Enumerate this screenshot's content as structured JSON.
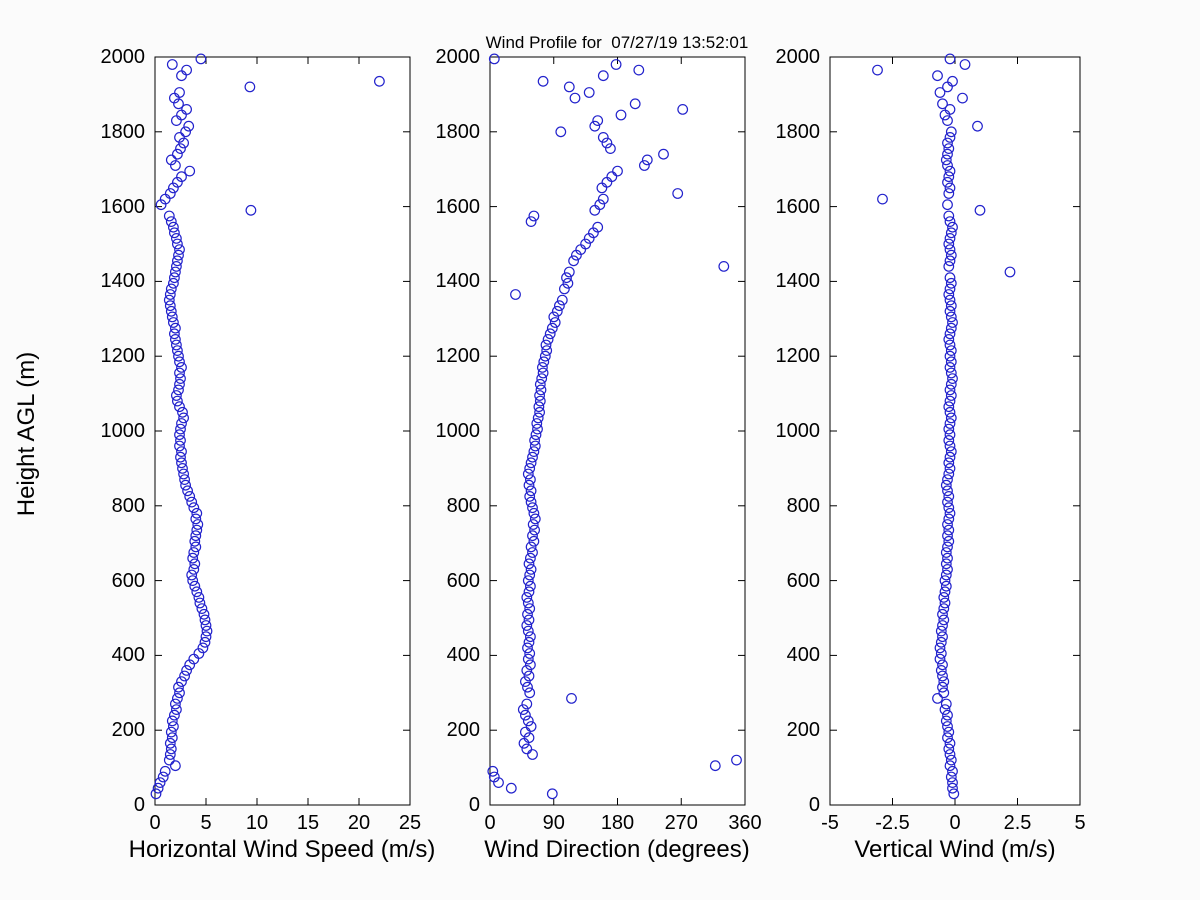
{
  "title": "Wind Profile for  07/27/19 13:52:01",
  "chart_data": {
    "type": "scatter",
    "title": "Wind Profile for  07/27/19 13:52:01",
    "marker": "open-circle",
    "marker_color": "#2222cc",
    "axis_color": "#000000",
    "background_color": "#ffffff",
    "legend": "none",
    "grid": false,
    "shared_y": {
      "label": "Height AGL (m)",
      "lim": [
        0,
        2000
      ],
      "ticks": [
        0,
        200,
        400,
        600,
        800,
        1000,
        1200,
        1400,
        1600,
        1800,
        2000
      ],
      "heights": [
        30,
        45,
        60,
        75,
        90,
        105,
        120,
        135,
        150,
        165,
        180,
        195,
        210,
        225,
        240,
        255,
        270,
        285,
        300,
        315,
        330,
        345,
        360,
        375,
        390,
        405,
        420,
        435,
        450,
        465,
        480,
        495,
        510,
        525,
        540,
        555,
        570,
        585,
        600,
        615,
        630,
        645,
        660,
        675,
        690,
        705,
        720,
        735,
        750,
        765,
        780,
        795,
        810,
        825,
        840,
        855,
        870,
        885,
        900,
        915,
        930,
        945,
        960,
        975,
        990,
        1005,
        1020,
        1035,
        1050,
        1065,
        1080,
        1095,
        1110,
        1125,
        1140,
        1155,
        1170,
        1185,
        1200,
        1215,
        1230,
        1245,
        1260,
        1275,
        1290,
        1305,
        1320,
        1335,
        1350,
        1365,
        1380,
        1395,
        1410,
        1425,
        1440,
        1455,
        1470,
        1485,
        1500,
        1515,
        1530,
        1545,
        1560,
        1575,
        1590,
        1605,
        1620,
        1635,
        1650,
        1665,
        1680,
        1695,
        1710,
        1725,
        1740,
        1755,
        1770,
        1785,
        1800,
        1815,
        1830,
        1845,
        1860,
        1875,
        1890,
        1905,
        1920,
        1935,
        1950,
        1965,
        1980,
        1995
      ]
    },
    "panels": [
      {
        "name": "horizontal-wind-speed",
        "xlabel": "Horizontal Wind Speed (m/s)",
        "xlim": [
          0,
          25
        ],
        "xticks": [
          0,
          5,
          10,
          15,
          20,
          25
        ],
        "values": [
          0.1,
          0.3,
          0.5,
          0.8,
          1.0,
          2.0,
          1.4,
          1.5,
          1.6,
          1.5,
          1.7,
          1.6,
          1.8,
          1.7,
          1.9,
          2.1,
          2.0,
          2.2,
          2.4,
          2.3,
          2.6,
          2.9,
          3.1,
          3.4,
          3.8,
          4.3,
          4.7,
          4.9,
          5.0,
          5.1,
          5.0,
          4.9,
          4.8,
          4.6,
          4.4,
          4.3,
          4.1,
          3.9,
          3.7,
          3.6,
          3.8,
          3.9,
          3.7,
          3.8,
          4.0,
          3.9,
          4.0,
          4.1,
          4.2,
          4.0,
          4.1,
          3.8,
          3.6,
          3.4,
          3.2,
          3.0,
          2.9,
          2.8,
          2.7,
          2.6,
          2.5,
          2.6,
          2.4,
          2.5,
          2.4,
          2.5,
          2.6,
          2.8,
          2.7,
          2.4,
          2.2,
          2.1,
          2.3,
          2.4,
          2.5,
          2.4,
          2.6,
          2.4,
          2.3,
          2.2,
          2.1,
          2.0,
          1.9,
          2.0,
          1.8,
          1.7,
          1.6,
          1.5,
          1.4,
          1.5,
          1.6,
          1.8,
          1.9,
          2.0,
          2.1,
          2.2,
          2.3,
          2.4,
          2.2,
          2.1,
          1.9,
          1.8,
          1.6,
          1.4,
          9.4,
          0.6,
          1.0,
          1.5,
          1.8,
          2.2,
          2.6,
          3.4,
          2.0,
          1.6,
          2.2,
          2.5,
          2.8,
          2.4,
          3.0,
          3.3,
          2.1,
          2.6,
          3.1,
          2.3,
          1.9,
          2.4,
          9.3,
          22.0,
          2.6,
          3.1,
          1.7,
          4.5
        ]
      },
      {
        "name": "wind-direction",
        "xlabel": "Wind Direction (degrees)",
        "xlim": [
          0,
          360
        ],
        "xticks": [
          0,
          90,
          180,
          270,
          360
        ],
        "values": [
          88,
          30,
          12,
          6,
          4,
          318,
          348,
          60,
          52,
          48,
          55,
          50,
          58,
          54,
          50,
          47,
          52,
          115,
          56,
          53,
          50,
          55,
          52,
          57,
          54,
          56,
          53,
          55,
          57,
          54,
          52,
          55,
          53,
          56,
          54,
          52,
          55,
          57,
          54,
          56,
          58,
          55,
          57,
          60,
          58,
          62,
          60,
          63,
          61,
          64,
          62,
          60,
          58,
          56,
          58,
          55,
          57,
          54,
          56,
          58,
          60,
          62,
          64,
          63,
          65,
          67,
          66,
          68,
          70,
          69,
          71,
          70,
          72,
          71,
          73,
          75,
          74,
          76,
          78,
          80,
          79,
          82,
          85,
          88,
          92,
          90,
          95,
          98,
          102,
          36,
          105,
          110,
          108,
          112,
          330,
          118,
          122,
          128,
          135,
          140,
          146,
          152,
          58,
          62,
          148,
          155,
          160,
          265,
          158,
          165,
          172,
          180,
          218,
          222,
          245,
          170,
          165,
          160,
          100,
          148,
          152,
          185,
          272,
          205,
          120,
          140,
          112,
          75,
          160,
          210,
          178,
          6
        ]
      },
      {
        "name": "vertical-wind",
        "xlabel": "Vertical Wind (m/s)",
        "xlim": [
          -5,
          5
        ],
        "xticks": [
          -5,
          -2.5,
          0,
          2.5,
          5
        ],
        "values": [
          -0.05,
          -0.1,
          -0.1,
          -0.15,
          -0.1,
          -0.2,
          -0.15,
          -0.2,
          -0.25,
          -0.2,
          -0.3,
          -0.25,
          -0.3,
          -0.35,
          -0.3,
          -0.4,
          -0.35,
          -0.7,
          -0.45,
          -0.5,
          -0.45,
          -0.5,
          -0.55,
          -0.5,
          -0.6,
          -0.55,
          -0.6,
          -0.55,
          -0.5,
          -0.55,
          -0.5,
          -0.45,
          -0.5,
          -0.45,
          -0.4,
          -0.45,
          -0.4,
          -0.35,
          -0.4,
          -0.35,
          -0.3,
          -0.35,
          -0.3,
          -0.35,
          -0.3,
          -0.25,
          -0.3,
          -0.25,
          -0.3,
          -0.25,
          -0.2,
          -0.25,
          -0.3,
          -0.25,
          -0.3,
          -0.35,
          -0.3,
          -0.25,
          -0.2,
          -0.25,
          -0.2,
          -0.15,
          -0.2,
          -0.25,
          -0.2,
          -0.25,
          -0.2,
          -0.15,
          -0.2,
          -0.25,
          -0.2,
          -0.15,
          -0.2,
          -0.15,
          -0.1,
          -0.15,
          -0.2,
          -0.15,
          -0.2,
          -0.15,
          -0.2,
          -0.25,
          -0.2,
          -0.15,
          -0.1,
          -0.15,
          -0.2,
          -0.15,
          -0.2,
          -0.25,
          -0.2,
          -0.15,
          -0.2,
          2.2,
          -0.25,
          -0.2,
          -0.15,
          -0.2,
          -0.25,
          -0.2,
          -0.15,
          -0.1,
          -0.2,
          -0.25,
          1.0,
          -0.3,
          -2.9,
          -0.25,
          -0.2,
          -0.3,
          -0.25,
          -0.2,
          -0.3,
          -0.35,
          -0.3,
          -0.25,
          -0.3,
          -0.2,
          -0.15,
          0.9,
          -0.3,
          -0.4,
          -0.2,
          -0.5,
          0.3,
          -0.6,
          -0.3,
          -0.1,
          -0.7,
          -3.1,
          0.4,
          -0.2
        ]
      }
    ]
  }
}
